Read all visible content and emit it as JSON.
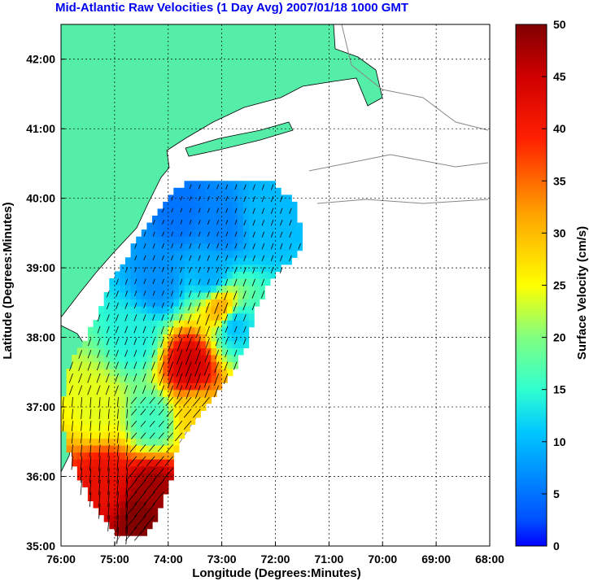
{
  "chart_data": {
    "type": "heatmap",
    "title": "Mid-Atlantic Raw Velocities (1 Day Avg) 2007/01/18 1000 GMT",
    "xlabel": "Longitude (Degrees:Minutes)",
    "ylabel": "Latitude (Degrees:Minutes)",
    "x_ticks": [
      "76:00",
      "75:00",
      "74:00",
      "73:00",
      "72:00",
      "71:00",
      "70:00",
      "69:00",
      "68:00"
    ],
    "y_ticks": [
      "35:00",
      "36:00",
      "37:00",
      "38:00",
      "39:00",
      "40:00",
      "41:00",
      "42:00"
    ],
    "xlim": [
      -76,
      -68
    ],
    "ylim": [
      35,
      42.5
    ],
    "grid": true,
    "colorbar": {
      "label": "Surface Velocity (cm/s)",
      "range": [
        0,
        50
      ],
      "ticks": [
        "0",
        "5",
        "10",
        "15",
        "20",
        "25",
        "30",
        "35",
        "40",
        "45",
        "50"
      ],
      "colormap": "jet"
    },
    "land_color": "#55eea8",
    "field_regions": [
      {
        "lon": -73.8,
        "lat": 39.8,
        "speed": 5
      },
      {
        "lon": -73.0,
        "lat": 39.6,
        "speed": 6
      },
      {
        "lon": -72.2,
        "lat": 39.7,
        "speed": 10
      },
      {
        "lon": -74.2,
        "lat": 38.8,
        "speed": 7
      },
      {
        "lon": -73.2,
        "lat": 38.9,
        "speed": 9
      },
      {
        "lon": -72.8,
        "lat": 38.2,
        "speed": 10
      },
      {
        "lon": -74.6,
        "lat": 38.0,
        "speed": 14
      },
      {
        "lon": -73.6,
        "lat": 37.6,
        "speed": 45
      },
      {
        "lon": -73.0,
        "lat": 38.4,
        "speed": 32
      },
      {
        "lon": -75.3,
        "lat": 37.0,
        "speed": 24
      },
      {
        "lon": -74.3,
        "lat": 36.8,
        "speed": 16
      },
      {
        "lon": -73.5,
        "lat": 36.9,
        "speed": 28
      },
      {
        "lon": -75.2,
        "lat": 35.9,
        "speed": 42
      },
      {
        "lon": -74.3,
        "lat": 35.8,
        "speed": 48
      },
      {
        "lon": -74.5,
        "lat": 35.4,
        "speed": 50
      }
    ]
  }
}
